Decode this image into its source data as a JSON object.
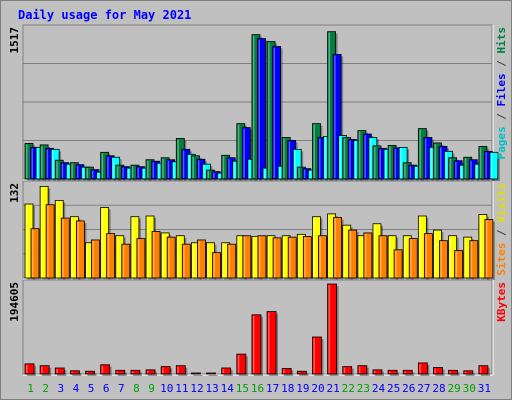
{
  "chart_data": [
    {
      "type": "bar",
      "title": "Daily usage for May 2021",
      "panel": "top",
      "ymax_label": "1517",
      "ylim": [
        0,
        1517
      ],
      "categories": [
        "1",
        "2",
        "3",
        "4",
        "5",
        "6",
        "7",
        "8",
        "9",
        "10",
        "11",
        "12",
        "13",
        "14",
        "15",
        "16",
        "17",
        "18",
        "19",
        "20",
        "21",
        "22",
        "23",
        "24",
        "25",
        "26",
        "27",
        "28",
        "29",
        "30",
        "31"
      ],
      "weekend_days": [
        "1",
        "2",
        "8",
        "9",
        "15",
        "16",
        "22",
        "23",
        "29",
        "30"
      ],
      "series": [
        {
          "name": "Hits",
          "color": "#008040",
          "values": [
            360,
            345,
            190,
            165,
            120,
            270,
            140,
            140,
            195,
            215,
            410,
            235,
            90,
            240,
            560,
            1460,
            1390,
            420,
            120,
            560,
            1490,
            420,
            490,
            335,
            340,
            165,
            510,
            365,
            215,
            220,
            330
          ]
        },
        {
          "name": "Files",
          "color": "#0000ff",
          "values": [
            320,
            310,
            165,
            145,
            95,
            235,
            125,
            125,
            180,
            195,
            300,
            200,
            75,
            215,
            520,
            1420,
            1340,
            390,
            105,
            420,
            1260,
            400,
            455,
            310,
            315,
            140,
            420,
            330,
            185,
            195,
            280
          ]
        },
        {
          "name": "Pages",
          "color": "#00ffff",
          "values": [
            320,
            300,
            150,
            120,
            70,
            220,
            110,
            110,
            160,
            175,
            250,
            150,
            60,
            180,
            200,
            110,
            130,
            300,
            90,
            430,
            440,
            390,
            420,
            300,
            320,
            130,
            320,
            280,
            140,
            150,
            270
          ]
        }
      ]
    },
    {
      "type": "bar",
      "panel": "middle",
      "ymax_label": "132",
      "ylim": [
        0,
        132
      ],
      "categories": [
        "1",
        "2",
        "3",
        "4",
        "5",
        "6",
        "7",
        "8",
        "9",
        "10",
        "11",
        "12",
        "13",
        "14",
        "15",
        "16",
        "17",
        "18",
        "19",
        "20",
        "21",
        "22",
        "23",
        "24",
        "25",
        "26",
        "27",
        "28",
        "29",
        "30",
        "31"
      ],
      "series": [
        {
          "name": "Visits",
          "color": "#ffff00",
          "values": [
            105,
            130,
            110,
            87,
            50,
            100,
            60,
            87,
            88,
            64,
            60,
            50,
            50,
            50,
            60,
            59,
            60,
            60,
            62,
            87,
            91,
            75,
            60,
            77,
            60,
            60,
            88,
            68,
            60,
            58,
            90
          ]
        },
        {
          "name": "Sites",
          "color": "#ff8000",
          "values": [
            70,
            104,
            85,
            81,
            54,
            63,
            48,
            56,
            66,
            58,
            48,
            54,
            36,
            48,
            60,
            60,
            57,
            58,
            59,
            60,
            86,
            68,
            64,
            60,
            40,
            56,
            63,
            53,
            39,
            53,
            83
          ]
        }
      ]
    },
    {
      "type": "bar",
      "panel": "bottom",
      "ymax_label": "194605",
      "ylim": [
        0,
        194605
      ],
      "categories": [
        "1",
        "2",
        "3",
        "4",
        "5",
        "6",
        "7",
        "8",
        "9",
        "10",
        "11",
        "12",
        "13",
        "14",
        "15",
        "16",
        "17",
        "18",
        "19",
        "20",
        "21",
        "22",
        "23",
        "24",
        "25",
        "26",
        "27",
        "28",
        "29",
        "30",
        "31"
      ],
      "series": [
        {
          "name": "KBytes",
          "color": "#ff0000",
          "values": [
            22000,
            18000,
            13000,
            7000,
            6000,
            20000,
            8000,
            8000,
            9000,
            16000,
            18000,
            2000,
            2000,
            13000,
            43000,
            128000,
            135000,
            12000,
            6000,
            80000,
            194605,
            16000,
            18000,
            9000,
            8000,
            8000,
            24000,
            14000,
            8000,
            7000,
            18000
          ]
        }
      ]
    }
  ],
  "legend_labels": {
    "pages": "Pages",
    "files": "Files",
    "hits": "Hits",
    "sites": "Sites",
    "visits": "Visits",
    "kbytes": "KBytes",
    "separator": " / "
  },
  "colors": {
    "background": "#c0c0c0",
    "plot_background": "#c0c0c0",
    "title": "#0000ff",
    "weekday_label": "#0000ff",
    "weekend_label": "#00a000",
    "gridline": "#808080"
  }
}
